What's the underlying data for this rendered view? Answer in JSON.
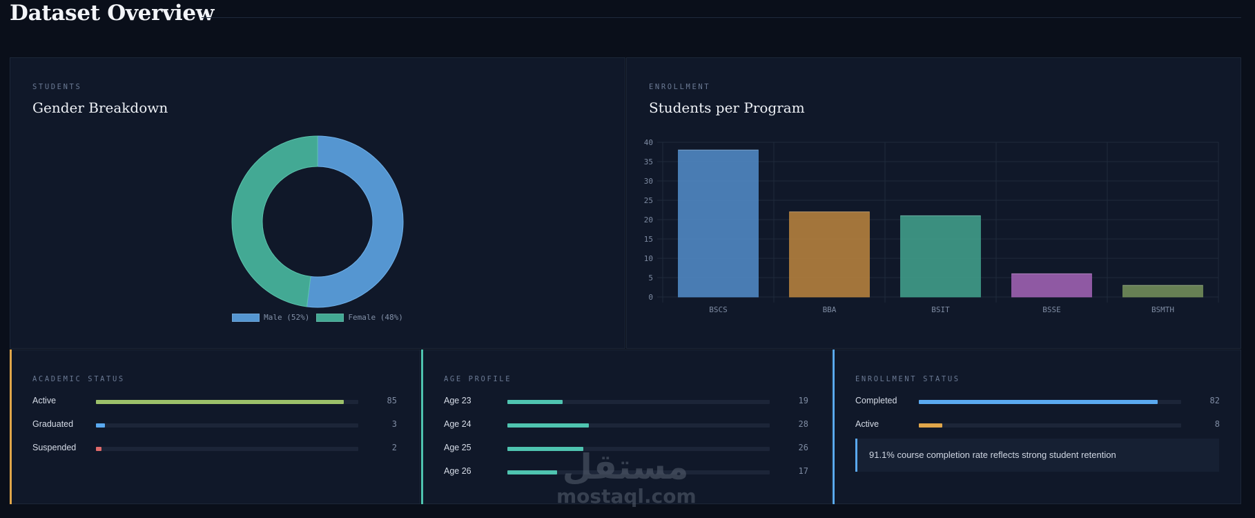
{
  "header": {
    "title": "Dataset Overview"
  },
  "gender_panel": {
    "kicker": "STUDENTS",
    "title": "Gender Breakdown"
  },
  "program_panel": {
    "kicker": "ENROLLMENT",
    "title": "Students per Program"
  },
  "academic_panel": {
    "kicker": "ACADEMIC STATUS",
    "accent": "#e0a64a",
    "max": 90,
    "rows": [
      {
        "label": "Active",
        "value": "85",
        "fraction": 0.944,
        "color": "#9cc06a"
      },
      {
        "label": "Graduated",
        "value": "3",
        "fraction": 0.033,
        "color": "#5aa9f0"
      },
      {
        "label": "Suspended",
        "value": "2",
        "fraction": 0.022,
        "color": "#e06a6a"
      }
    ]
  },
  "age_panel": {
    "kicker": "AGE PROFILE",
    "accent": "#4fc4b0",
    "rows": [
      {
        "label": "Age 23",
        "value": "19",
        "fraction": 0.21,
        "color": "#4fc4b0"
      },
      {
        "label": "Age 24",
        "value": "28",
        "fraction": 0.311,
        "color": "#4fc4b0"
      },
      {
        "label": "Age 25",
        "value": "26",
        "fraction": 0.289,
        "color": "#4fc4b0"
      },
      {
        "label": "Age 26",
        "value": "17",
        "fraction": 0.189,
        "color": "#4fc4b0"
      }
    ]
  },
  "enrollment_panel": {
    "kicker": "ENROLLMENT STATUS",
    "accent": "#5aa9f0",
    "rows": [
      {
        "label": "Completed",
        "value": "82",
        "fraction": 0.911,
        "color": "#5aa9f0"
      },
      {
        "label": "Active",
        "value": "8",
        "fraction": 0.089,
        "color": "#e0a64a"
      }
    ],
    "insight": "91.1% course completion rate reflects strong student retention"
  },
  "watermark": {
    "arabic": "مستقل",
    "latin": "mostaql.com"
  },
  "chart_data": [
    {
      "type": "pie",
      "title": "Gender Breakdown",
      "donut": true,
      "slices": [
        {
          "label": "Male (52%)",
          "value": 52,
          "color": "#5596d1"
        },
        {
          "label": "Female (48%)",
          "value": 48,
          "color": "#43a994"
        }
      ],
      "legend": "bottom"
    },
    {
      "type": "bar",
      "title": "Students per Program",
      "categories": [
        "BSCS",
        "BBA",
        "BSIT",
        "BSSE",
        "BSMTH"
      ],
      "values": [
        38,
        22,
        21,
        6,
        3
      ],
      "colors": [
        "#4e86bf",
        "#b07e3d",
        "#3f9a87",
        "#9a5fae",
        "#6f8a58"
      ],
      "ylim": [
        0,
        40
      ],
      "yticks": [
        "0",
        "5",
        "10",
        "15",
        "20",
        "25",
        "30",
        "35",
        "40"
      ],
      "grid": true
    }
  ]
}
